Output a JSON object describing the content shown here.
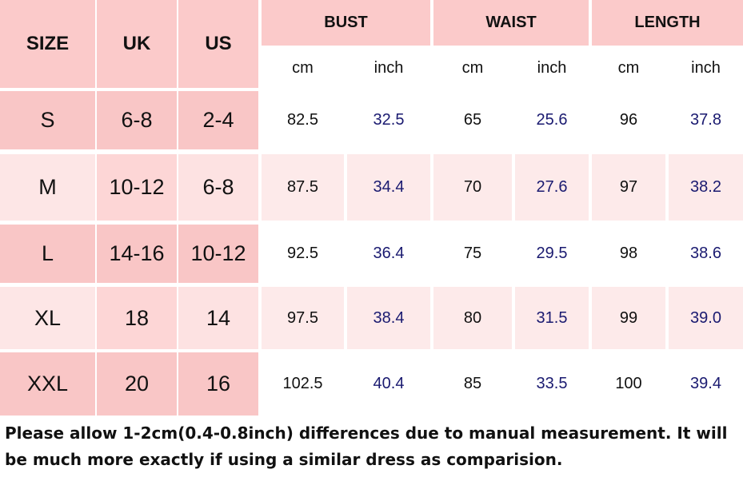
{
  "table": {
    "header": {
      "size": "SIZE",
      "uk": "UK",
      "us": "US",
      "groups": [
        "BUST",
        "WAIST",
        "LENGTH"
      ],
      "units": [
        "cm",
        "inch",
        "cm",
        "inch",
        "cm",
        "inch"
      ]
    },
    "rows": [
      [
        "S",
        "6-8",
        "2-4",
        "82.5",
        "32.5",
        "65",
        "25.6",
        "96",
        "37.8"
      ],
      [
        "M",
        "10-12",
        "6-8",
        "87.5",
        "34.4",
        "70",
        "27.6",
        "97",
        "38.2"
      ],
      [
        "L",
        "14-16",
        "10-12",
        "92.5",
        "36.4",
        "75",
        "29.5",
        "98",
        "38.6"
      ],
      [
        "XL",
        "18",
        "14",
        "97.5",
        "38.4",
        "80",
        "31.5",
        "99",
        "39.0"
      ],
      [
        "XXL",
        "20",
        "16",
        "102.5",
        "40.4",
        "85",
        "33.5",
        "100",
        "39.4"
      ]
    ]
  },
  "note": "Please allow 1-2cm(0.4-0.8inch) differences due to manual measurement. It will be much more exactly if using a similar dress as comparision."
}
